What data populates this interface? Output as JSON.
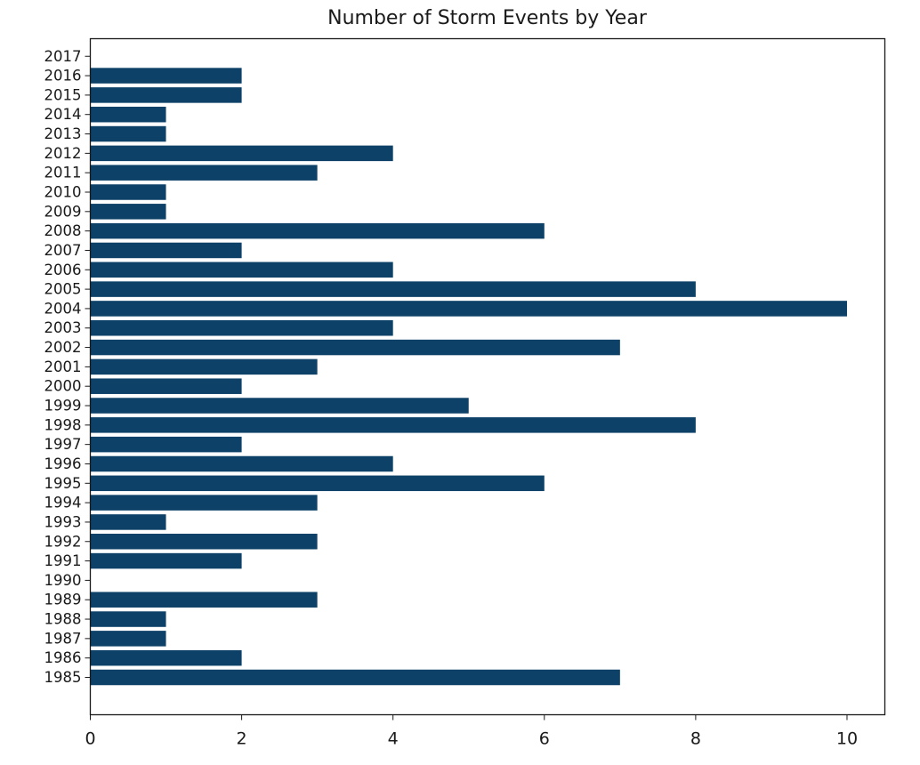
{
  "chart_data": {
    "type": "bar",
    "orientation": "horizontal",
    "title": "Number of Storm Events by Year",
    "xlabel": "",
    "ylabel": "",
    "xlim": [
      0,
      10.5
    ],
    "xticks": [
      "0",
      "2",
      "4",
      "6",
      "8",
      "10"
    ],
    "categories": [
      "1985",
      "1986",
      "1987",
      "1988",
      "1989",
      "1990",
      "1991",
      "1992",
      "1993",
      "1994",
      "1995",
      "1996",
      "1997",
      "1998",
      "1999",
      "2000",
      "2001",
      "2002",
      "2003",
      "2004",
      "2005",
      "2006",
      "2007",
      "2008",
      "2009",
      "2010",
      "2011",
      "2012",
      "2013",
      "2014",
      "2015",
      "2016",
      "2017"
    ],
    "values": [
      7,
      2,
      1,
      1,
      3,
      0,
      2,
      3,
      1,
      3,
      6,
      4,
      2,
      8,
      5,
      2,
      3,
      7,
      4,
      10,
      8,
      4,
      2,
      6,
      1,
      1,
      3,
      4,
      1,
      1,
      2,
      2,
      0
    ],
    "bar_color": "#0d4168",
    "grid": false,
    "legend": "none"
  }
}
